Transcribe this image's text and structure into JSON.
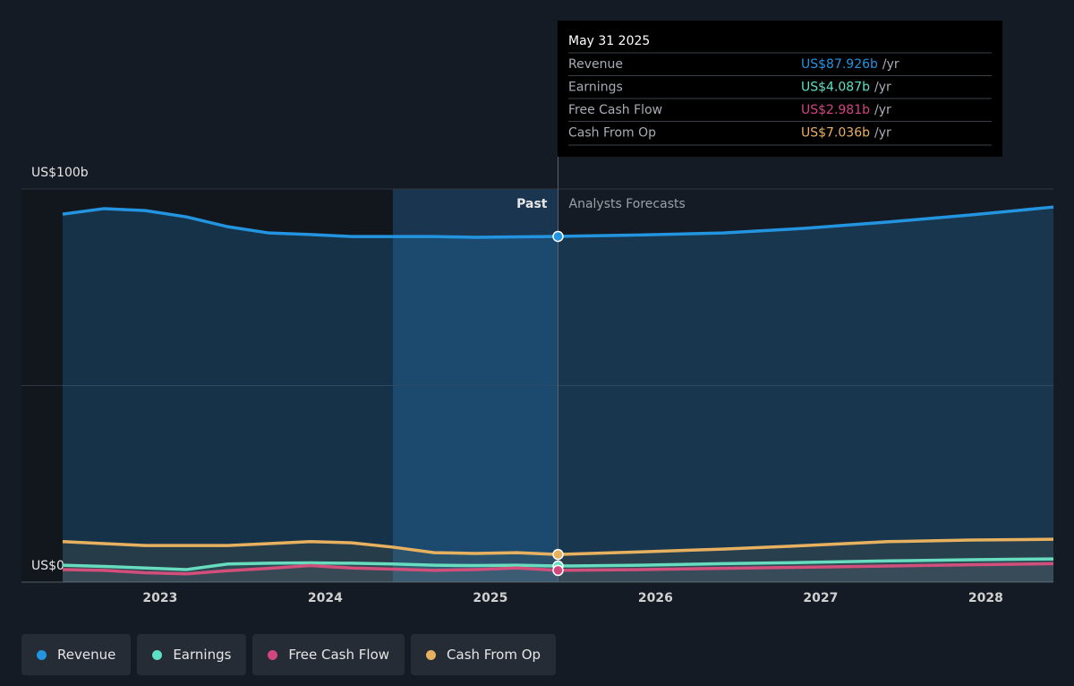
{
  "chart_data": {
    "type": "line",
    "x": [
      2022.41,
      2022.66,
      2022.91,
      2023.16,
      2023.41,
      2023.66,
      2023.91,
      2024.16,
      2024.41,
      2024.66,
      2024.91,
      2025.16,
      2025.41,
      2025.91,
      2026.41,
      2026.91,
      2027.41,
      2027.91,
      2028.41
    ],
    "series": [
      {
        "name": "Revenue",
        "color": "#2394df",
        "values": [
          93.6,
          95.0,
          94.5,
          92.9,
          90.4,
          88.8,
          88.4,
          87.9,
          87.9,
          87.9,
          87.7,
          87.8,
          87.926,
          88.3,
          88.8,
          90.0,
          91.6,
          93.4,
          95.4
        ]
      },
      {
        "name": "Earnings",
        "color": "#5ee0c7",
        "values": [
          4.3,
          4.0,
          3.6,
          3.2,
          4.6,
          4.8,
          4.9,
          4.8,
          4.6,
          4.3,
          4.2,
          4.3,
          4.087,
          4.3,
          4.7,
          5.0,
          5.4,
          5.7,
          5.9
        ]
      },
      {
        "name": "Free Cash Flow",
        "color": "#d1477e",
        "values": [
          3.2,
          3.0,
          2.4,
          2.1,
          2.9,
          3.5,
          4.2,
          3.6,
          3.3,
          3.0,
          3.2,
          3.6,
          2.981,
          3.2,
          3.5,
          3.8,
          4.1,
          4.4,
          4.7
        ]
      },
      {
        "name": "Cash From Op",
        "color": "#e8b15f",
        "values": [
          10.3,
          9.8,
          9.3,
          9.3,
          9.3,
          9.8,
          10.3,
          10.0,
          8.9,
          7.5,
          7.3,
          7.5,
          7.036,
          7.7,
          8.4,
          9.3,
          10.3,
          10.7,
          10.9
        ]
      }
    ],
    "xlim": [
      2022.41,
      2028.41
    ],
    "xticks": [
      2023,
      2024,
      2025,
      2026,
      2027,
      2028
    ],
    "ylim": [
      0,
      100
    ],
    "yticks": [
      {
        "value": 0,
        "label": "US$0"
      },
      {
        "value": 50,
        "label": null
      },
      {
        "value": 100,
        "label": "US$100b"
      }
    ],
    "grid": true,
    "highlight": [
      2024.41,
      2025.41
    ],
    "past_label": "Past",
    "forecast_label": "Analysts Forecasts",
    "tooltip": {
      "title": "May 31 2025",
      "items": [
        {
          "name": "Revenue",
          "value_label": "US$87.926b",
          "unit": "/yr"
        },
        {
          "name": "Earnings",
          "value_label": "US$4.087b",
          "unit": "/yr"
        },
        {
          "name": "Free Cash Flow",
          "value_label": "US$2.981b",
          "unit": "/yr"
        },
        {
          "name": "Cash From Op",
          "value_label": "US$7.036b",
          "unit": "/yr"
        }
      ]
    }
  }
}
